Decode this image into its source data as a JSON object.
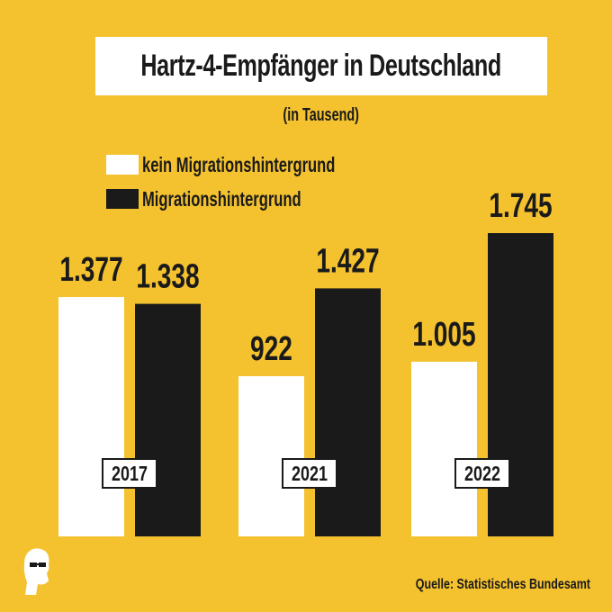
{
  "colors": {
    "background": "#f4c12f",
    "without_migration": "#ffffff",
    "with_migration": "#1a1a1a",
    "text": "#1a1a1a"
  },
  "title": "Hartz-4-Empfänger in Deutschland",
  "subtitle": "(in Tausend)",
  "legend": [
    {
      "label": "kein Migrationshintergrund",
      "color": "#ffffff"
    },
    {
      "label": "Migrationshintergrund",
      "color": "#1a1a1a"
    }
  ],
  "source": "Quelle: Statistisches Bundesamt",
  "logo_icon": "portrait-silhouette-icon",
  "chart_data": {
    "type": "bar",
    "title": "Hartz-4-Empfänger in Deutschland",
    "subtitle": "(in Tausend)",
    "categories": [
      "2017",
      "2021",
      "2022"
    ],
    "series": [
      {
        "name": "kein Migrationshintergrund",
        "values": [
          1377,
          922,
          1005
        ],
        "labels": [
          "1.377",
          "922",
          "1.005"
        ]
      },
      {
        "name": "Migrationshintergrund",
        "values": [
          1338,
          1427,
          1745
        ],
        "labels": [
          "1.338",
          "1.427",
          "1.745"
        ]
      }
    ],
    "legend_position": "top-left",
    "grid": false
  }
}
